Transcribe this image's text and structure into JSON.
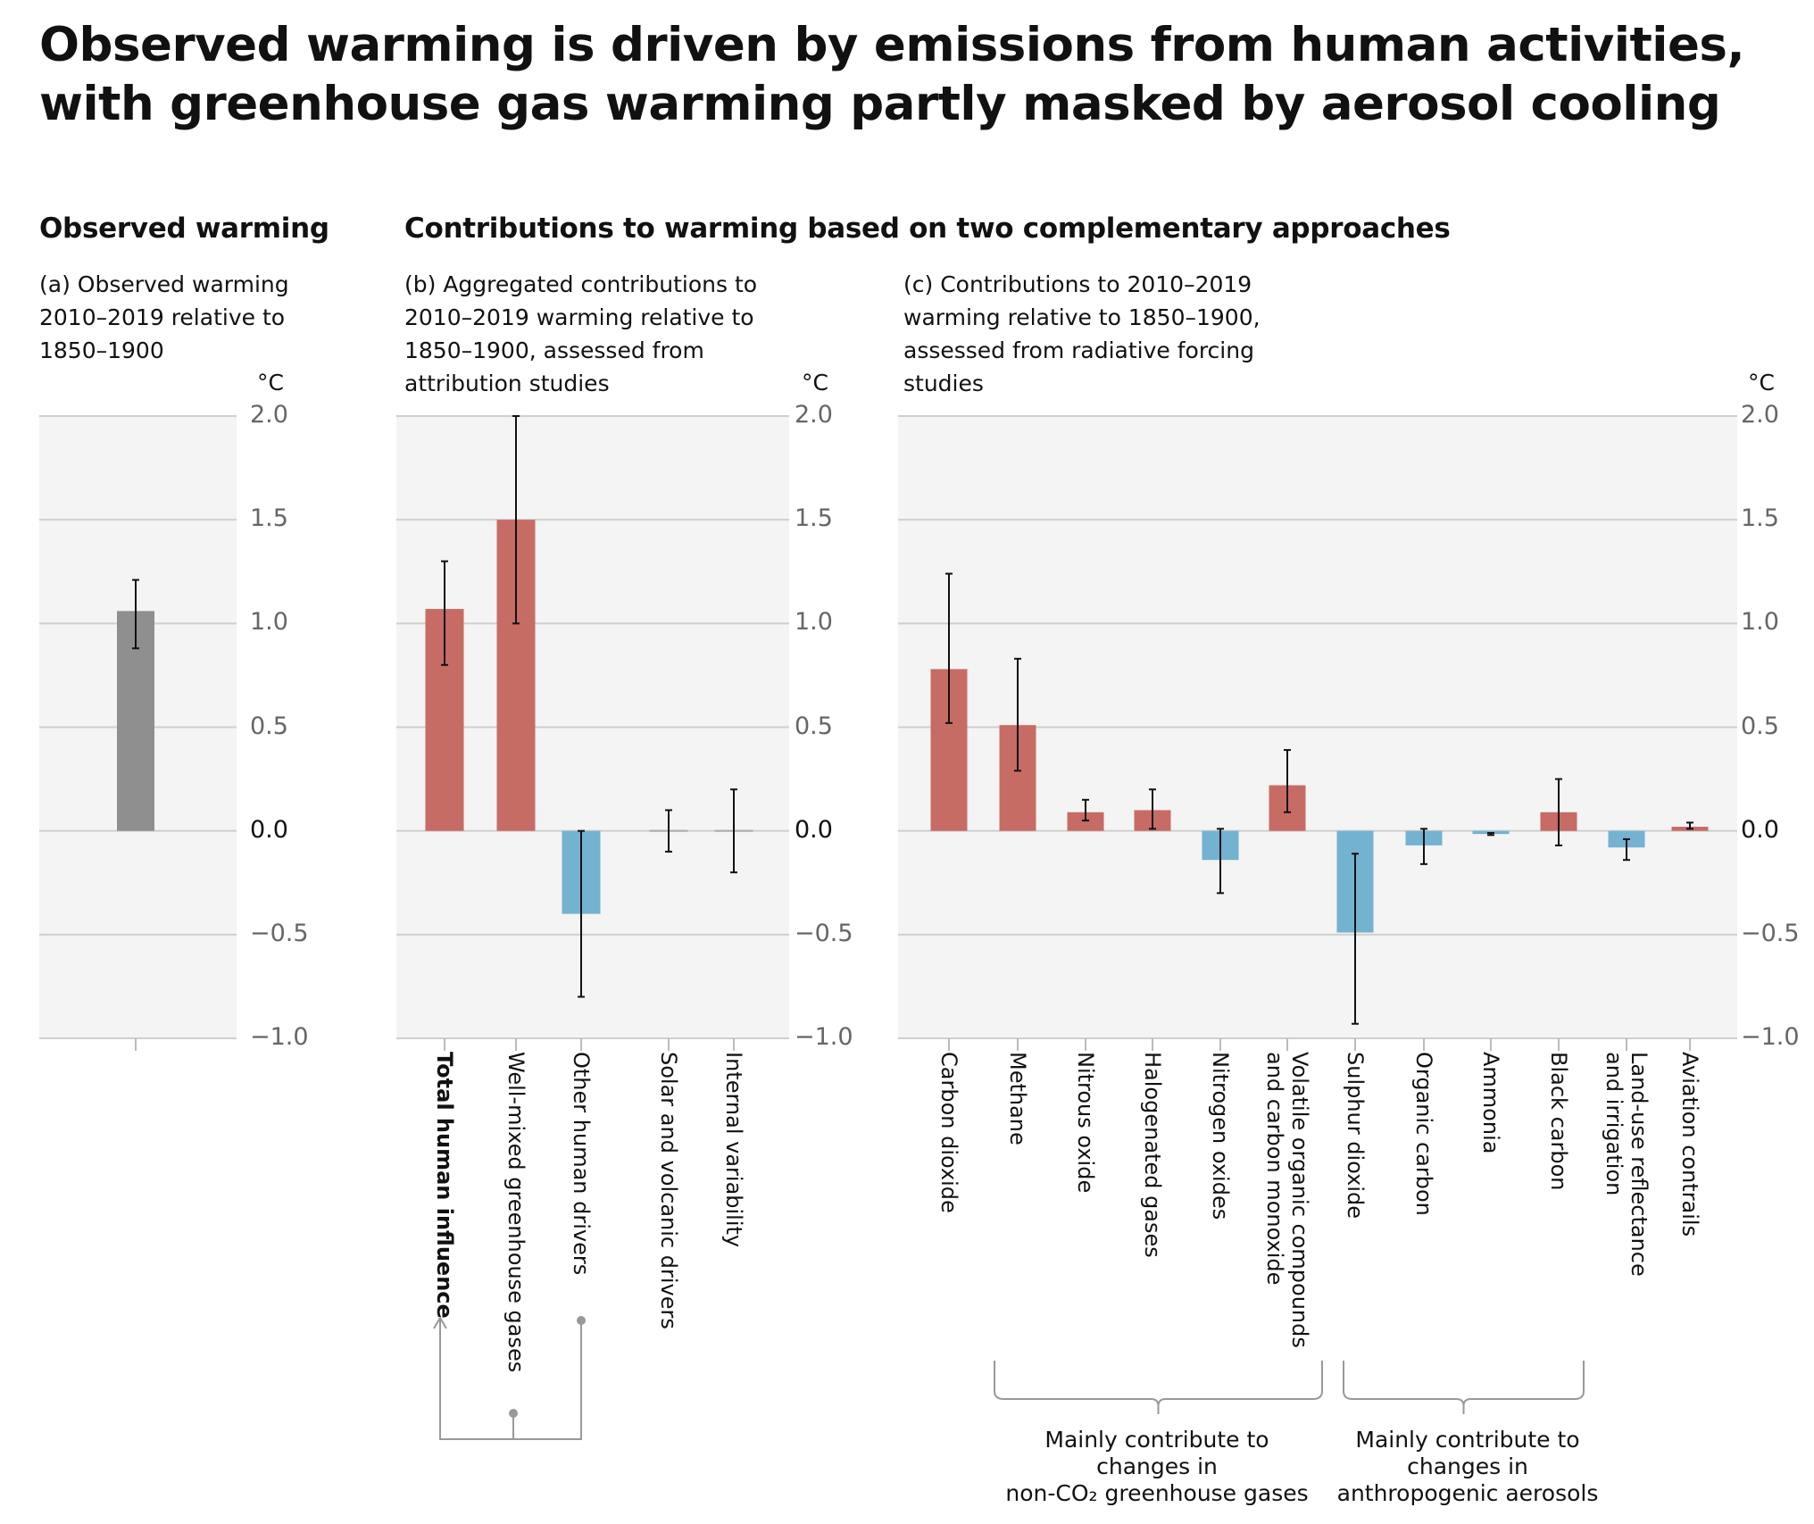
{
  "title": "Observed warming is driven by emissions from human activities, with greenhouse gas warming partly masked by aerosol cooling",
  "sections": {
    "observed": "Observed warming",
    "contributions": "Contributions to warming based on two complementary approaches"
  },
  "colors": {
    "warming": "#c76b65",
    "cooling": "#74b2d1",
    "observed": "#8f8f8f",
    "panel_bg": "#f3f4f3",
    "grid": "#cfcfcf"
  },
  "annotations": {
    "ghg_group": "Mainly contribute to\nchanges in\nnon-CO₂ greenhouse gases",
    "aerosol_group": "Mainly contribute to\nchanges in\nanthropogenic aerosols"
  },
  "chart_data": [
    {
      "type": "bar",
      "subtitle": "(a) Observed warming 2010–2019 relative to 1850–1900",
      "ylabel": "°C",
      "ylim": [
        -1.0,
        2.0
      ],
      "yticks": [
        "2.0",
        "1.5",
        "1.0",
        "0.5",
        "0.0",
        "−0.5",
        "−1.0"
      ],
      "grid": true,
      "categories": [
        ""
      ],
      "values": [
        1.06
      ],
      "error_low": [
        0.88
      ],
      "error_high": [
        1.21
      ],
      "colors": [
        "observed"
      ]
    },
    {
      "type": "bar",
      "subtitle": "(b) Aggregated contributions to 2010–2019 warming relative to 1850–1900, assessed from attribution studies",
      "ylabel": "°C",
      "ylim": [
        -1.0,
        2.0
      ],
      "yticks": [
        "2.0",
        "1.5",
        "1.0",
        "0.5",
        "0.0",
        "−0.5",
        "−1.0"
      ],
      "grid": true,
      "categories": [
        "Total human influence",
        "Well-mixed greenhouse gases",
        "Other human drivers",
        "Solar and volcanic drivers",
        "Internal variability"
      ],
      "values": [
        1.07,
        1.5,
        -0.4,
        0.0,
        0.0
      ],
      "error_low": [
        0.8,
        1.0,
        -0.8,
        -0.1,
        -0.2
      ],
      "error_high": [
        1.3,
        2.0,
        0.0,
        0.1,
        0.2
      ],
      "colors": [
        "warming",
        "warming",
        "cooling",
        "neutral",
        "neutral"
      ]
    },
    {
      "type": "bar",
      "subtitle": "(c) Contributions to 2010–2019 warming relative to 1850–1900, assessed from radiative forcing studies",
      "ylabel": "°C",
      "ylim": [
        -1.0,
        2.0
      ],
      "yticks": [
        "2.0",
        "1.5",
        "1.0",
        "0.5",
        "0.0",
        "−0.5",
        "−1.0"
      ],
      "grid": true,
      "categories": [
        "Carbon dioxide",
        "Methane",
        "Nitrous oxide",
        "Halogenated gases",
        "Nitrogen oxides",
        "Volatile organic compounds\nand carbon monoxide",
        "Sulphur dioxide",
        "Organic carbon",
        "Ammonia",
        "Black carbon",
        "Land-use reflectance\nand irrigation",
        "Aviation contrails"
      ],
      "values": [
        0.78,
        0.51,
        0.09,
        0.1,
        -0.14,
        0.22,
        -0.49,
        -0.07,
        -0.015,
        0.09,
        -0.08,
        0.02
      ],
      "error_low": [
        0.52,
        0.29,
        0.05,
        0.01,
        -0.3,
        0.09,
        -0.93,
        -0.16,
        -0.02,
        -0.07,
        -0.14,
        0.01
      ],
      "error_high": [
        1.24,
        0.83,
        0.15,
        0.2,
        0.01,
        0.39,
        -0.11,
        0.01,
        -0.01,
        0.25,
        -0.04,
        0.04
      ],
      "colors": [
        "warming",
        "warming",
        "warming",
        "warming",
        "cooling",
        "warming",
        "cooling",
        "cooling",
        "cooling",
        "warming",
        "cooling",
        "warming"
      ]
    }
  ]
}
